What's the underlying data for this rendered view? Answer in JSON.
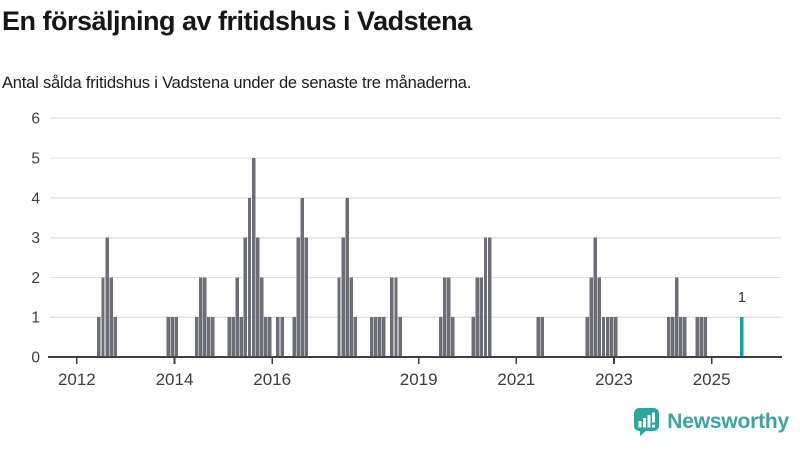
{
  "page": {
    "title": "En försäljning av fritidshus i Vadstena",
    "subtitle": "Antal sålda fritidshus i Vadstena under de senaste tre månaderna."
  },
  "branding": {
    "name": "Newsworthy",
    "icon": "bar-chart-speech-bubble-icon",
    "icon_color": "#2ba69e",
    "text_color": "#3ba49c"
  },
  "chart_data": {
    "type": "bar",
    "title": "En försäljning av fritidshus i Vadstena",
    "subtitle": "Antal sålda fritidshus i Vadstena under de senaste tre månaderna.",
    "xlabel": "",
    "ylabel": "",
    "ylim": [
      0,
      6
    ],
    "yticks": [
      0,
      1,
      2,
      3,
      4,
      5,
      6
    ],
    "xticks": [
      2012,
      2014,
      2016,
      2019,
      2021,
      2023,
      2025
    ],
    "x_domain_years": [
      2011.45,
      2026.4
    ],
    "grid": true,
    "legend": "none",
    "bar_color": "#6c6e77",
    "highlight_color": "#10a5a3",
    "grid_color": "#e3e3e3",
    "axis_color": "#404040",
    "annotation": {
      "text": "1",
      "month": "2025-08"
    },
    "series": [
      {
        "month": "2012-06",
        "value": 1
      },
      {
        "month": "2012-07",
        "value": 2
      },
      {
        "month": "2012-08",
        "value": 3
      },
      {
        "month": "2012-09",
        "value": 2
      },
      {
        "month": "2012-10",
        "value": 1
      },
      {
        "month": "2013-11",
        "value": 1
      },
      {
        "month": "2013-12",
        "value": 1
      },
      {
        "month": "2014-01",
        "value": 1
      },
      {
        "month": "2014-06",
        "value": 1
      },
      {
        "month": "2014-07",
        "value": 2
      },
      {
        "month": "2014-08",
        "value": 2
      },
      {
        "month": "2014-09",
        "value": 1
      },
      {
        "month": "2014-10",
        "value": 1
      },
      {
        "month": "2015-02",
        "value": 1
      },
      {
        "month": "2015-03",
        "value": 1
      },
      {
        "month": "2015-04",
        "value": 2
      },
      {
        "month": "2015-05",
        "value": 1
      },
      {
        "month": "2015-06",
        "value": 3
      },
      {
        "month": "2015-07",
        "value": 4
      },
      {
        "month": "2015-08",
        "value": 5
      },
      {
        "month": "2015-09",
        "value": 3
      },
      {
        "month": "2015-10",
        "value": 2
      },
      {
        "month": "2015-11",
        "value": 1
      },
      {
        "month": "2015-12",
        "value": 1
      },
      {
        "month": "2016-02",
        "value": 1
      },
      {
        "month": "2016-03",
        "value": 1
      },
      {
        "month": "2016-06",
        "value": 1
      },
      {
        "month": "2016-07",
        "value": 3
      },
      {
        "month": "2016-08",
        "value": 4
      },
      {
        "month": "2016-09",
        "value": 3
      },
      {
        "month": "2017-05",
        "value": 2
      },
      {
        "month": "2017-06",
        "value": 3
      },
      {
        "month": "2017-07",
        "value": 4
      },
      {
        "month": "2017-08",
        "value": 2
      },
      {
        "month": "2017-09",
        "value": 1
      },
      {
        "month": "2018-01",
        "value": 1
      },
      {
        "month": "2018-02",
        "value": 1
      },
      {
        "month": "2018-03",
        "value": 1
      },
      {
        "month": "2018-04",
        "value": 1
      },
      {
        "month": "2018-06",
        "value": 2
      },
      {
        "month": "2018-07",
        "value": 2
      },
      {
        "month": "2018-08",
        "value": 1
      },
      {
        "month": "2019-06",
        "value": 1
      },
      {
        "month": "2019-07",
        "value": 2
      },
      {
        "month": "2019-08",
        "value": 2
      },
      {
        "month": "2019-09",
        "value": 1
      },
      {
        "month": "2020-02",
        "value": 1
      },
      {
        "month": "2020-03",
        "value": 2
      },
      {
        "month": "2020-04",
        "value": 2
      },
      {
        "month": "2020-05",
        "value": 3
      },
      {
        "month": "2020-06",
        "value": 3
      },
      {
        "month": "2021-06",
        "value": 1
      },
      {
        "month": "2021-07",
        "value": 1
      },
      {
        "month": "2022-06",
        "value": 1
      },
      {
        "month": "2022-07",
        "value": 2
      },
      {
        "month": "2022-08",
        "value": 3
      },
      {
        "month": "2022-09",
        "value": 2
      },
      {
        "month": "2022-10",
        "value": 1
      },
      {
        "month": "2022-11",
        "value": 1
      },
      {
        "month": "2022-12",
        "value": 1
      },
      {
        "month": "2023-01",
        "value": 1
      },
      {
        "month": "2024-02",
        "value": 1
      },
      {
        "month": "2024-03",
        "value": 1
      },
      {
        "month": "2024-04",
        "value": 2
      },
      {
        "month": "2024-05",
        "value": 1
      },
      {
        "month": "2024-06",
        "value": 1
      },
      {
        "month": "2024-09",
        "value": 1
      },
      {
        "month": "2024-10",
        "value": 1
      },
      {
        "month": "2024-11",
        "value": 1
      },
      {
        "month": "2025-08",
        "value": 1,
        "highlight": true
      }
    ]
  }
}
